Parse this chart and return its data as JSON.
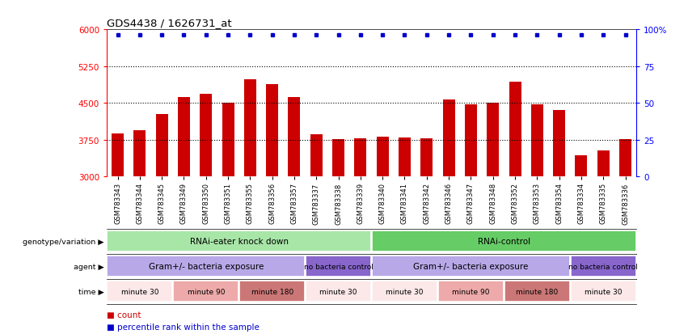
{
  "title": "GDS4438 / 1626731_at",
  "samples": [
    "GSM783343",
    "GSM783344",
    "GSM783345",
    "GSM783349",
    "GSM783350",
    "GSM783351",
    "GSM783355",
    "GSM783356",
    "GSM783357",
    "GSM783337",
    "GSM783338",
    "GSM783339",
    "GSM783340",
    "GSM783341",
    "GSM783342",
    "GSM783346",
    "GSM783347",
    "GSM783348",
    "GSM783352",
    "GSM783353",
    "GSM783354",
    "GSM783334",
    "GSM783335",
    "GSM783336"
  ],
  "counts": [
    3880,
    3940,
    4280,
    4620,
    4680,
    4500,
    4990,
    4890,
    4620,
    3870,
    3760,
    3780,
    3820,
    3790,
    3780,
    4570,
    4470,
    4500,
    4930,
    4480,
    4360,
    3440,
    3540,
    3760
  ],
  "bar_color": "#cc0000",
  "dot_color": "#0000cc",
  "ymin": 3000,
  "ymax": 6000,
  "yticks": [
    3000,
    3750,
    4500,
    5250,
    6000
  ],
  "ytick_labels": [
    "3000",
    "3750",
    "4500",
    "5250",
    "6000"
  ],
  "right_yticks": [
    0,
    25,
    50,
    75,
    100
  ],
  "right_ytick_labels": [
    "0",
    "25",
    "50",
    "75",
    "100%"
  ],
  "dotted_lines": [
    3750,
    4500,
    5250
  ],
  "genotype_segments": [
    {
      "text": "RNAi-eater knock down",
      "start": 0,
      "end": 12,
      "color": "#a8e6a8"
    },
    {
      "text": "RNAi-control",
      "start": 12,
      "end": 24,
      "color": "#66cc66"
    }
  ],
  "agent_segments": [
    {
      "text": "Gram+/- bacteria exposure",
      "start": 0,
      "end": 9,
      "color": "#b8a8e8"
    },
    {
      "text": "no bacteria control",
      "start": 9,
      "end": 12,
      "color": "#8866cc"
    },
    {
      "text": "Gram+/- bacteria exposure",
      "start": 12,
      "end": 21,
      "color": "#b8a8e8"
    },
    {
      "text": "no bacteria control",
      "start": 21,
      "end": 24,
      "color": "#8866cc"
    }
  ],
  "time_segments": [
    {
      "text": "minute 30",
      "start": 0,
      "end": 3,
      "color": "#fce8e8"
    },
    {
      "text": "minute 90",
      "start": 3,
      "end": 6,
      "color": "#eeaaaa"
    },
    {
      "text": "minute 180",
      "start": 6,
      "end": 9,
      "color": "#cc7777"
    },
    {
      "text": "minute 30",
      "start": 9,
      "end": 12,
      "color": "#fce8e8"
    },
    {
      "text": "minute 30",
      "start": 12,
      "end": 15,
      "color": "#fce8e8"
    },
    {
      "text": "minute 90",
      "start": 15,
      "end": 18,
      "color": "#eeaaaa"
    },
    {
      "text": "minute 180",
      "start": 18,
      "end": 21,
      "color": "#cc7777"
    },
    {
      "text": "minute 30",
      "start": 21,
      "end": 24,
      "color": "#fce8e8"
    }
  ],
  "row_labels": [
    "genotype/variation",
    "agent",
    "time"
  ],
  "legend_items": [
    {
      "label": "count",
      "color": "#cc0000"
    },
    {
      "label": "percentile rank within the sample",
      "color": "#0000cc"
    }
  ],
  "fig_width": 8.51,
  "fig_height": 4.14,
  "dpi": 100
}
